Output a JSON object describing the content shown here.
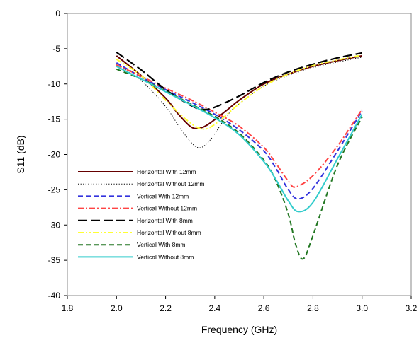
{
  "chart_data": {
    "type": "line",
    "xlabel": "Frequency (GHz)",
    "ylabel": "S11 (dB)",
    "xlim": [
      1.8,
      3.2
    ],
    "ylim": [
      -40,
      0
    ],
    "x_ticks": [
      1.8,
      2.0,
      2.2,
      2.4,
      2.6,
      2.8,
      3.0,
      3.2
    ],
    "x_tick_labels": [
      "1.8",
      "2.0",
      "2.2",
      "2.4",
      "2.6",
      "2.8",
      "3.0",
      "3.2"
    ],
    "y_ticks": [
      0,
      -5,
      -10,
      -15,
      -20,
      -25,
      -30,
      -35,
      -40
    ],
    "y_tick_labels": [
      "0",
      "-5",
      "-10",
      "-15",
      "-20",
      "-25",
      "-30",
      "-35",
      "-40"
    ],
    "grid": false,
    "legend_position": "lower-left",
    "series": [
      {
        "name": "Horizontal With 12mm",
        "color": "#660000",
        "dash": "solid",
        "width": 2,
        "points": [
          [
            2.0,
            -6.0
          ],
          [
            2.1,
            -8.8
          ],
          [
            2.2,
            -12.0
          ],
          [
            2.25,
            -14.2
          ],
          [
            2.3,
            -16.0
          ],
          [
            2.33,
            -16.3
          ],
          [
            2.37,
            -15.8
          ],
          [
            2.45,
            -13.7
          ],
          [
            2.5,
            -12.3
          ],
          [
            2.6,
            -10.0
          ],
          [
            2.7,
            -8.6
          ],
          [
            2.8,
            -7.5
          ],
          [
            2.9,
            -6.7
          ],
          [
            3.0,
            -6.0
          ]
        ]
      },
      {
        "name": "Horizontal Without 12mm",
        "color": "#000000",
        "dash": "dot",
        "width": 1,
        "points": [
          [
            2.0,
            -7.2
          ],
          [
            2.1,
            -9.5
          ],
          [
            2.2,
            -13.2
          ],
          [
            2.27,
            -16.8
          ],
          [
            2.33,
            -19.0
          ],
          [
            2.38,
            -18.0
          ],
          [
            2.45,
            -14.5
          ],
          [
            2.5,
            -12.8
          ],
          [
            2.6,
            -10.3
          ],
          [
            2.7,
            -8.8
          ],
          [
            2.8,
            -7.7
          ],
          [
            2.9,
            -6.9
          ],
          [
            3.0,
            -6.2
          ]
        ]
      },
      {
        "name": "Vertical With 12mm",
        "color": "#3333dd",
        "dash": "dash",
        "width": 2,
        "points": [
          [
            2.0,
            -7.0
          ],
          [
            2.1,
            -9.0
          ],
          [
            2.2,
            -10.8
          ],
          [
            2.3,
            -12.5
          ],
          [
            2.4,
            -14.3
          ],
          [
            2.5,
            -16.5
          ],
          [
            2.6,
            -19.5
          ],
          [
            2.65,
            -22.0
          ],
          [
            2.7,
            -25.0
          ],
          [
            2.74,
            -26.3
          ],
          [
            2.8,
            -24.8
          ],
          [
            2.9,
            -19.5
          ],
          [
            3.0,
            -13.8
          ]
        ]
      },
      {
        "name": "Vertical Without 12mm",
        "color": "#ff4444",
        "dash": "dashdot",
        "width": 2,
        "points": [
          [
            2.0,
            -7.3
          ],
          [
            2.1,
            -8.9
          ],
          [
            2.2,
            -10.6
          ],
          [
            2.3,
            -12.2
          ],
          [
            2.4,
            -14.0
          ],
          [
            2.5,
            -16.0
          ],
          [
            2.6,
            -19.0
          ],
          [
            2.65,
            -21.3
          ],
          [
            2.7,
            -23.8
          ],
          [
            2.73,
            -24.6
          ],
          [
            2.8,
            -23.0
          ],
          [
            2.9,
            -18.8
          ],
          [
            3.0,
            -13.6
          ]
        ]
      },
      {
        "name": "Horizontal With 8mm",
        "color": "#000000",
        "dash": "longdash",
        "width": 2.2,
        "points": [
          [
            2.0,
            -5.5
          ],
          [
            2.1,
            -8.0
          ],
          [
            2.2,
            -10.8
          ],
          [
            2.3,
            -13.0
          ],
          [
            2.35,
            -13.6
          ],
          [
            2.4,
            -13.3
          ],
          [
            2.5,
            -11.7
          ],
          [
            2.6,
            -9.8
          ],
          [
            2.7,
            -8.3
          ],
          [
            2.8,
            -7.2
          ],
          [
            2.9,
            -6.3
          ],
          [
            3.0,
            -5.6
          ]
        ]
      },
      {
        "name": "Horizontal Without 8mm",
        "color": "#ffff33",
        "dash": "dashdotdot",
        "width": 2,
        "points": [
          [
            2.0,
            -6.5
          ],
          [
            2.1,
            -8.8
          ],
          [
            2.2,
            -12.3
          ],
          [
            2.3,
            -15.5
          ],
          [
            2.36,
            -16.4
          ],
          [
            2.42,
            -15.2
          ],
          [
            2.5,
            -12.8
          ],
          [
            2.6,
            -10.3
          ],
          [
            2.7,
            -8.6
          ],
          [
            2.8,
            -7.4
          ],
          [
            2.9,
            -6.6
          ],
          [
            3.0,
            -5.9
          ]
        ]
      },
      {
        "name": "Vertical With 8mm",
        "color": "#227722",
        "dash": "dash",
        "width": 2,
        "points": [
          [
            2.0,
            -7.9
          ],
          [
            2.1,
            -9.3
          ],
          [
            2.2,
            -11.0
          ],
          [
            2.3,
            -12.8
          ],
          [
            2.4,
            -14.6
          ],
          [
            2.5,
            -17.0
          ],
          [
            2.6,
            -20.8
          ],
          [
            2.65,
            -23.8
          ],
          [
            2.7,
            -28.5
          ],
          [
            2.73,
            -32.8
          ],
          [
            2.76,
            -34.8
          ],
          [
            2.8,
            -31.5
          ],
          [
            2.9,
            -21.5
          ],
          [
            3.0,
            -14.7
          ]
        ]
      },
      {
        "name": "Vertical Without 8mm",
        "color": "#33cccc",
        "dash": "solid",
        "width": 2,
        "points": [
          [
            2.0,
            -7.5
          ],
          [
            2.1,
            -9.3
          ],
          [
            2.2,
            -11.1
          ],
          [
            2.3,
            -12.9
          ],
          [
            2.4,
            -14.8
          ],
          [
            2.5,
            -17.2
          ],
          [
            2.6,
            -21.0
          ],
          [
            2.65,
            -23.6
          ],
          [
            2.7,
            -26.6
          ],
          [
            2.74,
            -28.1
          ],
          [
            2.8,
            -26.8
          ],
          [
            2.9,
            -20.6
          ],
          [
            3.0,
            -14.3
          ]
        ]
      }
    ]
  }
}
